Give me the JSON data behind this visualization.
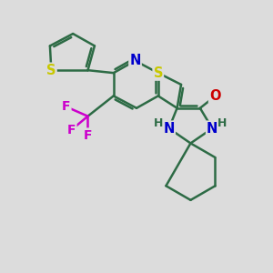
{
  "bg_color": "#dcdcdc",
  "bond_color": "#2d6b45",
  "bond_width": 1.8,
  "atom_colors": {
    "S": "#c8c800",
    "N": "#0000cc",
    "O": "#cc0000",
    "F": "#cc00cc",
    "H": "#2d6b45",
    "C": "#2d6b45"
  },
  "afs": 10.5
}
